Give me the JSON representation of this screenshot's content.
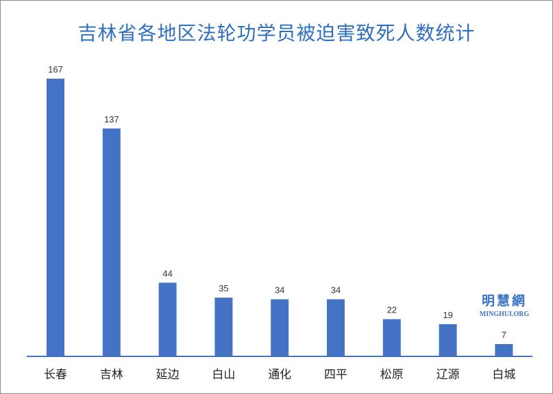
{
  "chart_data": {
    "type": "bar",
    "title": "吉林省各地区法轮功学员被迫害致死人数统计",
    "categories": [
      "长春",
      "吉林",
      "延边",
      "白山",
      "通化",
      "四平",
      "松原",
      "辽源",
      "白城"
    ],
    "values": [
      167,
      137,
      44,
      35,
      34,
      34,
      22,
      19,
      7
    ],
    "xlabel": "",
    "ylabel": "",
    "ylim": [
      0,
      167
    ],
    "grid": false,
    "legend": "none",
    "colors": {
      "bar": "#4472c4",
      "axis": "#4472c4",
      "title": "#2f6fc0"
    }
  },
  "watermark": {
    "cn": "明慧網",
    "en": "MINGHUI.ORG"
  }
}
